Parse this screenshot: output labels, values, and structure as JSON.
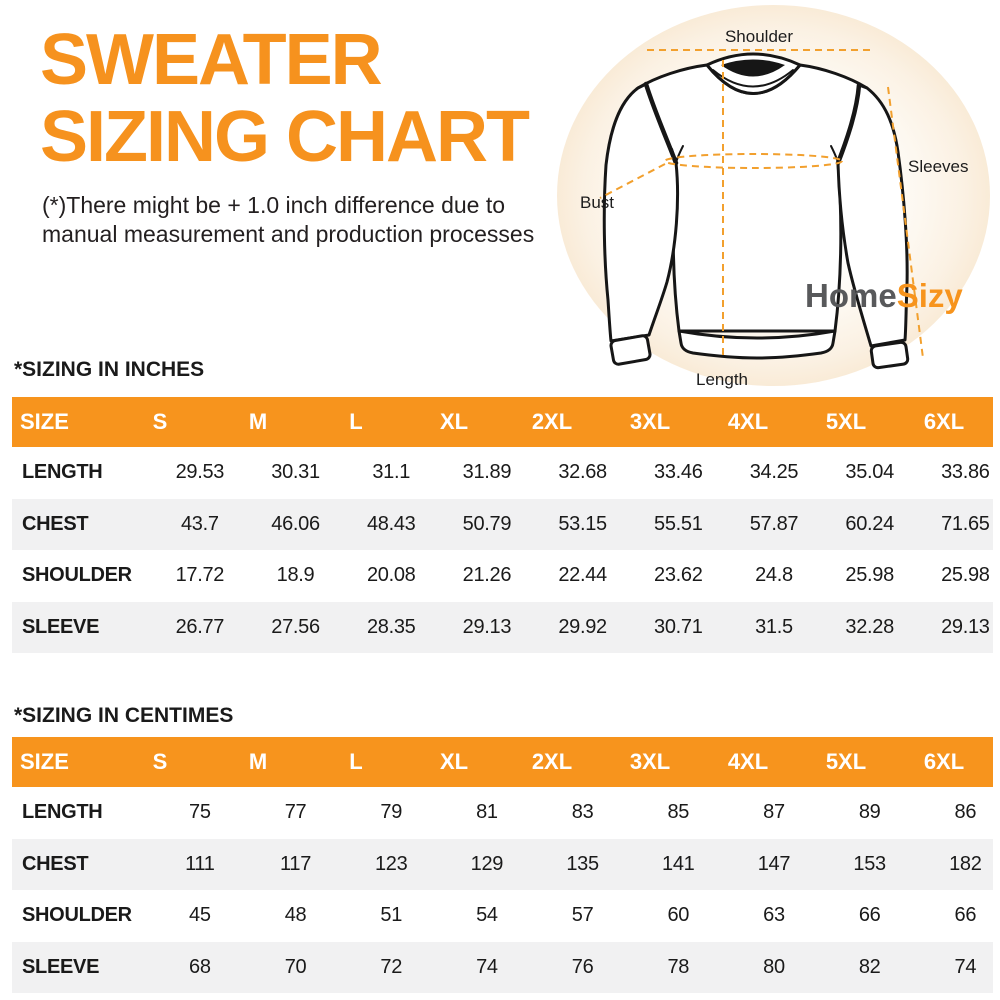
{
  "colors": {
    "accent": "#F7941D",
    "row_alt": "#F1F1F2",
    "logo_dark": "#58595B",
    "ink": "#231F20"
  },
  "title": {
    "line1": "SWEATER",
    "line2": "SIZING CHART"
  },
  "disclaimer": {
    "line1": "(*)There might be + 1.0 inch difference due to",
    "line2": "manual measurement and production processes"
  },
  "diagram": {
    "labels": {
      "shoulder": "Shoulder",
      "sleeves": "Sleeves",
      "bust": "Bust",
      "length": "Length"
    },
    "logo": {
      "part1": "Home",
      "part2": "Sizy"
    }
  },
  "tables": [
    {
      "heading": "*SIZING IN INCHES",
      "columns": [
        "SIZE",
        "S",
        "M",
        "L",
        "XL",
        "2XL",
        "3XL",
        "4XL",
        "5XL",
        "6XL"
      ],
      "rows": [
        {
          "label": "LENGTH",
          "values": [
            "29.53",
            "30.31",
            "31.1",
            "31.89",
            "32.68",
            "33.46",
            "34.25",
            "35.04",
            "33.86"
          ]
        },
        {
          "label": "CHEST",
          "values": [
            "43.7",
            "46.06",
            "48.43",
            "50.79",
            "53.15",
            "55.51",
            "57.87",
            "60.24",
            "71.65"
          ]
        },
        {
          "label": "SHOULDER",
          "values": [
            "17.72",
            "18.9",
            "20.08",
            "21.26",
            "22.44",
            "23.62",
            "24.8",
            "25.98",
            "25.98"
          ]
        },
        {
          "label": "SLEEVE",
          "values": [
            "26.77",
            "27.56",
            "28.35",
            "29.13",
            "29.92",
            "30.71",
            "31.5",
            "32.28",
            "29.13"
          ]
        }
      ]
    },
    {
      "heading": "*SIZING IN CENTIMES",
      "columns": [
        "SIZE",
        "S",
        "M",
        "L",
        "XL",
        "2XL",
        "3XL",
        "4XL",
        "5XL",
        "6XL"
      ],
      "rows": [
        {
          "label": "LENGTH",
          "values": [
            "75",
            "77",
            "79",
            "81",
            "83",
            "85",
            "87",
            "89",
            "86"
          ]
        },
        {
          "label": "CHEST",
          "values": [
            "111",
            "117",
            "123",
            "129",
            "135",
            "141",
            "147",
            "153",
            "182"
          ]
        },
        {
          "label": "SHOULDER",
          "values": [
            "45",
            "48",
            "51",
            "54",
            "57",
            "60",
            "63",
            "66",
            "66"
          ]
        },
        {
          "label": "SLEEVE",
          "values": [
            "68",
            "70",
            "72",
            "74",
            "76",
            "78",
            "80",
            "82",
            "74"
          ]
        }
      ]
    }
  ]
}
